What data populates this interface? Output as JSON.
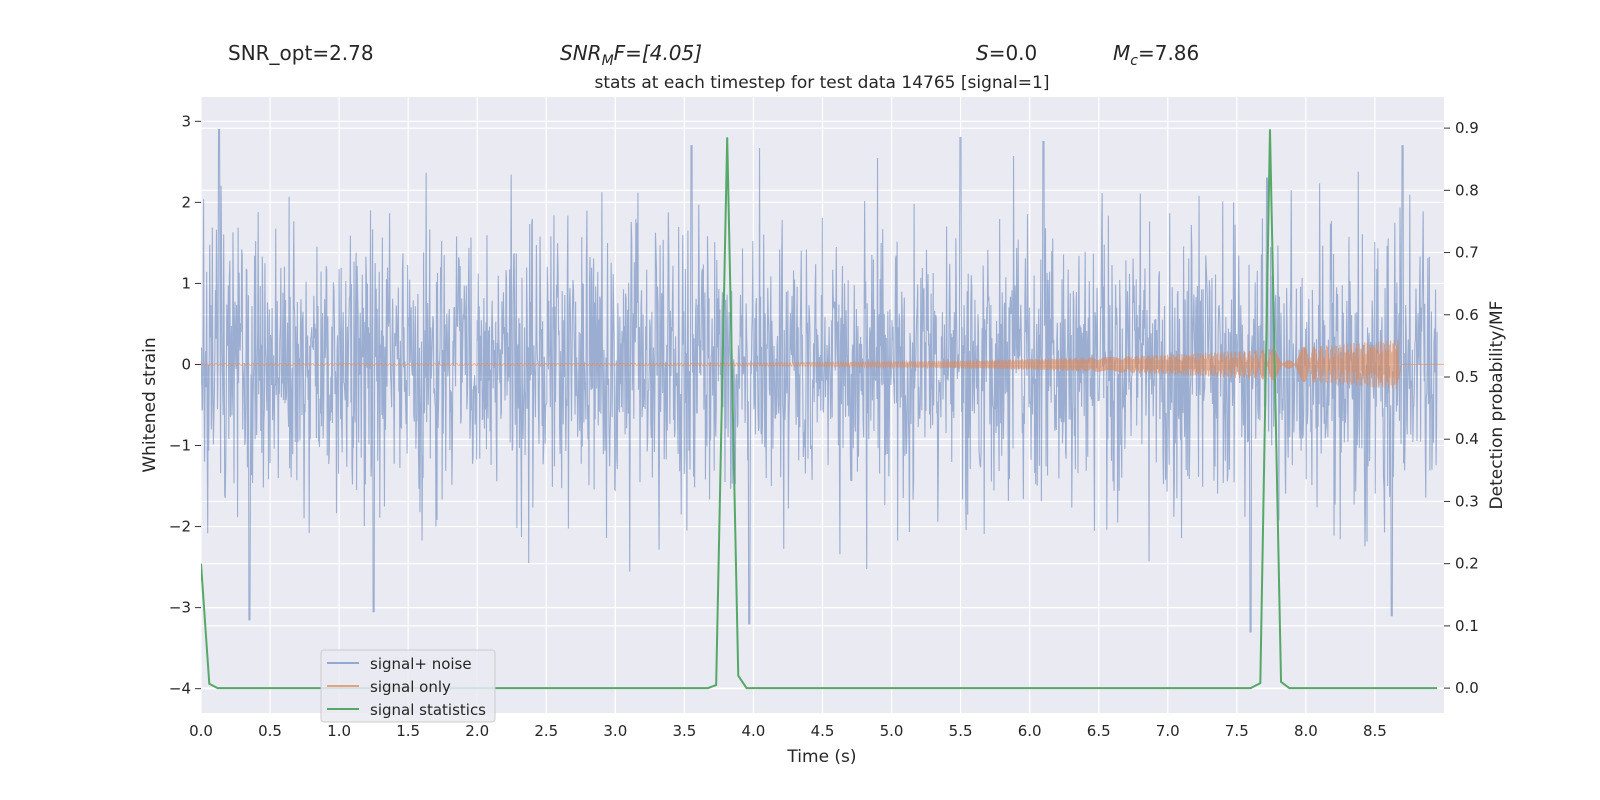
{
  "header": {
    "snr_opt": "SNR_opt=2.78",
    "snr_mf_base": "SNR",
    "snr_mf_sub": "M",
    "snr_mf_rest": "F=[4.05]",
    "s_var": "S",
    "s_rest": "=0.0",
    "mc_var": "M",
    "mc_sub": "c",
    "mc_rest": "=7.86"
  },
  "chart_data": {
    "type": "line",
    "title": "stats at each timestep for test data 14765 [signal=1]",
    "xlabel": "Time (s)",
    "ylabel": "Whitened strain",
    "y2label": "Detection probability/MF",
    "xlim": [
      0.0,
      9.0
    ],
    "ylim": [
      -4.3,
      3.3
    ],
    "y2lim": [
      -0.04,
      0.95
    ],
    "xticks": [
      "0.0",
      "0.5",
      "1.0",
      "1.5",
      "2.0",
      "2.5",
      "3.0",
      "3.5",
      "4.0",
      "4.5",
      "5.0",
      "5.5",
      "6.0",
      "6.5",
      "7.0",
      "7.5",
      "8.0",
      "8.5"
    ],
    "yticks": [
      "3",
      "2",
      "1",
      "0",
      "−1",
      "−2",
      "−3",
      "−4"
    ],
    "y2ticks": [
      "0.9",
      "0.8",
      "0.7",
      "0.6",
      "0.5",
      "0.4",
      "0.3",
      "0.2",
      "0.1",
      "0.0"
    ],
    "grid": true,
    "legend_position": "lower-left",
    "colors": {
      "background": "#eaeaf2",
      "grid": "#ffffff",
      "noise": "#4c72b0",
      "signal": "#dd8452",
      "stats": "#55a868"
    },
    "series": [
      {
        "name": "signal+ noise",
        "description_type": "noise",
        "duration": 8.95,
        "sigma": 0.85,
        "peaks": [
          {
            "x": 0.13,
            "y": 2.9
          },
          {
            "x": 0.35,
            "y": -3.15
          },
          {
            "x": 1.25,
            "y": -3.05
          },
          {
            "x": 3.55,
            "y": 2.7
          },
          {
            "x": 3.97,
            "y": -3.2
          },
          {
            "x": 5.5,
            "y": 2.8
          },
          {
            "x": 6.1,
            "y": 2.75
          },
          {
            "x": 7.6,
            "y": -3.3
          },
          {
            "x": 7.72,
            "y": 2.3
          },
          {
            "x": 8.62,
            "y": -3.1
          },
          {
            "x": 8.7,
            "y": 2.7
          }
        ]
      },
      {
        "name": "signal only",
        "description_type": "chirp",
        "start": 0.0,
        "end": 8.67,
        "max_amplitude": 0.3
      },
      {
        "name": "signal statistics",
        "axis": "right",
        "x": [
          0.0,
          0.06,
          0.12,
          0.2,
          1.0,
          2.0,
          3.0,
          3.6,
          3.67,
          3.73,
          3.81,
          3.89,
          3.95,
          4.0,
          5.0,
          6.0,
          7.0,
          7.55,
          7.6,
          7.67,
          7.74,
          7.82,
          7.88,
          7.95,
          8.5,
          8.95
        ],
        "y": [
          0.2,
          0.007,
          0.0,
          0.0,
          0.0,
          0.0,
          0.0,
          0.0,
          0.0,
          0.005,
          0.885,
          0.02,
          0.0,
          0.0,
          0.0,
          0.0,
          0.0,
          0.0,
          0.0,
          0.008,
          0.898,
          0.01,
          0.0,
          0.0,
          0.0,
          0.0
        ]
      }
    ]
  }
}
